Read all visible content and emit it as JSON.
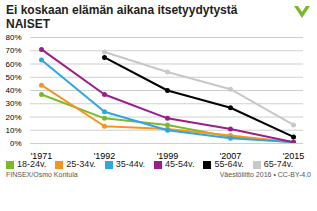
{
  "chart_data": {
    "type": "line",
    "title": "Ei koskaan elämän aikana itsetyydytystä",
    "subtitle": "NAISET",
    "categories": [
      "'1971",
      "'1992",
      "'1999",
      "'2007",
      "'2015"
    ],
    "series": [
      {
        "name": "18-24v.",
        "color": "#7cb928",
        "values": [
          37,
          19,
          14,
          5,
          1
        ]
      },
      {
        "name": "25-34v.",
        "color": "#f7941d",
        "values": [
          44,
          13,
          11,
          6,
          1
        ]
      },
      {
        "name": "35-44v.",
        "color": "#2ea7e0",
        "values": [
          63,
          24,
          10,
          4,
          1
        ]
      },
      {
        "name": "45-54v.",
        "color": "#9b1d8a",
        "values": [
          71,
          37,
          19,
          11,
          1
        ]
      },
      {
        "name": "55-64v.",
        "color": "#000000",
        "values": [
          null,
          65,
          40,
          27,
          5
        ]
      },
      {
        "name": "65-74v.",
        "color": "#c8c8c8",
        "values": [
          null,
          69,
          54,
          41,
          14
        ]
      }
    ],
    "ylim": [
      0,
      80
    ],
    "yticks": [
      {
        "value": 0,
        "label": "0%"
      },
      {
        "value": 10,
        "label": "10%"
      },
      {
        "value": 20,
        "label": "20%"
      },
      {
        "value": 30,
        "label": "30%"
      },
      {
        "value": 40,
        "label": "40%"
      },
      {
        "value": 50,
        "label": "50%"
      },
      {
        "value": 60,
        "label": "60%"
      },
      {
        "value": 70,
        "label": "70%"
      },
      {
        "value": 80,
        "label": "80%"
      }
    ],
    "grid": true,
    "marker": "circle",
    "line_style": "solid",
    "legend": "bottom",
    "annotations": [
      "FINSEX/Osmo Kontula",
      "Väestöliitto 2016 • CC-BY-4.0"
    ]
  }
}
